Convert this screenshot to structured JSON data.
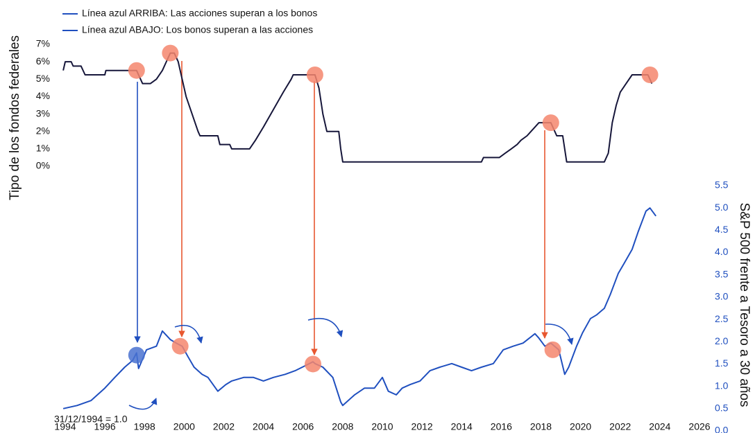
{
  "chart_data": {
    "type": "line",
    "legend": [
      "Línea azul ARRIBA: Las acciones superan a los bonos",
      "Línea azul ABAJO: Los bonos superan a las acciones"
    ],
    "y_label": "Tipo de los fondos federales",
    "y2_label": "S&P 500 frente a Tesoro a 30 años",
    "annotation": "31/12/1994 = 1.0",
    "xlim": [
      1994,
      2026
    ],
    "xticks": [
      1994,
      1996,
      1998,
      2000,
      2002,
      2004,
      2006,
      2008,
      2010,
      2012,
      2014,
      2016,
      2018,
      2020,
      2022,
      2024,
      2026
    ],
    "ylim": [
      0,
      7
    ],
    "yticks": [
      {
        "value": 0,
        "label": "0%"
      },
      {
        "value": 1,
        "label": "1%"
      },
      {
        "value": 2,
        "label": "2%"
      },
      {
        "value": 3,
        "label": "3%"
      },
      {
        "value": 4,
        "label": "4%"
      },
      {
        "value": 5,
        "label": "5%"
      },
      {
        "value": 6,
        "label": "6%"
      },
      {
        "value": 7,
        "label": "7%"
      }
    ],
    "y2lim": [
      0,
      5.5
    ],
    "y2ticks": [
      {
        "value": 0,
        "label": "0.0"
      },
      0.5,
      {
        "value": 1,
        "label": "1.0"
      },
      1.5,
      {
        "value": 2,
        "label": "2.0"
      },
      2.5,
      {
        "value": 3,
        "label": "3.0"
      },
      3.5,
      {
        "value": 4,
        "label": "4.0"
      },
      4.5,
      {
        "value": 5,
        "label": "5.0"
      },
      5.5
    ],
    "series": [
      {
        "color": "#16163a",
        "axis": "y",
        "x": [
          1993.9,
          1994.0,
          1994.3,
          1994.4,
          1994.8,
          1995.0,
          1996.0,
          1996.05,
          1997.6,
          1997.9,
          1998.3,
          1998.6,
          1998.9,
          1999.1,
          1999.3,
          1999.5,
          1999.7,
          1999.9,
          2000.1,
          2000.4,
          2000.7,
          2000.8,
          2001.7,
          2001.8,
          2002.3,
          2002.4,
          2003.3,
          2003.6,
          2004.0,
          2004.5,
          2005.0,
          2005.4,
          2005.5,
          2006.6,
          2006.8,
          2007.0,
          2007.2,
          2007.8,
          2007.9,
          2008.0,
          2015.0,
          2015.1,
          2015.9,
          2016.2,
          2016.5,
          2016.8,
          2017.0,
          2017.3,
          2017.5,
          2017.7,
          2017.9,
          2018.5,
          2018.8,
          2019.1,
          2019.3,
          2021.2,
          2021.4,
          2021.6,
          2021.8,
          2022.0,
          2022.3,
          2022.6,
          2023.4,
          2023.6
        ],
        "values": [
          5.5,
          6.0,
          6.0,
          5.75,
          5.75,
          5.25,
          5.25,
          5.5,
          5.5,
          4.75,
          4.75,
          5.0,
          5.5,
          6.0,
          6.5,
          6.5,
          6.0,
          5.0,
          4.0,
          3.0,
          2.0,
          1.75,
          1.75,
          1.25,
          1.25,
          1.0,
          1.0,
          1.5,
          2.25,
          3.25,
          4.25,
          5.0,
          5.25,
          5.25,
          4.5,
          3.0,
          2.0,
          2.0,
          1.0,
          0.25,
          0.25,
          0.5,
          0.5,
          0.75,
          1.0,
          1.25,
          1.5,
          1.75,
          2.0,
          2.25,
          2.5,
          2.5,
          1.75,
          1.75,
          0.25,
          0.25,
          0.75,
          2.5,
          3.5,
          4.25,
          4.75,
          5.25,
          5.25,
          4.75
        ]
      },
      {
        "color": "#1f4fbf",
        "axis": "y2",
        "x": [
          1993.9,
          1994.6,
          1995.3,
          1996.0,
          1996.5,
          1997.0,
          1997.4,
          1997.6,
          1997.7,
          1998.1,
          1998.6,
          1998.9,
          1999.3,
          1999.6,
          1999.9,
          2000.2,
          2000.5,
          2000.9,
          2001.2,
          2001.7,
          2002.1,
          2002.4,
          2003.0,
          2003.5,
          2004.0,
          2004.5,
          2005.1,
          2005.6,
          2006.1,
          2006.5,
          2006.6,
          2007.0,
          2007.5,
          2007.9,
          2008.0,
          2008.6,
          2009.1,
          2009.6,
          2010.0,
          2010.3,
          2010.7,
          2011.0,
          2011.4,
          2011.9,
          2012.4,
          2012.9,
          2013.5,
          2014.0,
          2014.5,
          2015.0,
          2015.6,
          2016.1,
          2016.6,
          2017.1,
          2017.7,
          2017.9,
          2018.2,
          2018.5,
          2018.9,
          2019.2,
          2019.4,
          2019.8,
          2020.1,
          2020.5,
          2020.8,
          2021.2,
          2021.5,
          2021.9,
          2022.2,
          2022.6,
          2022.9,
          2023.3,
          2023.5,
          2023.8
        ],
        "values": [
          0.5,
          0.57,
          0.68,
          0.96,
          1.2,
          1.43,
          1.58,
          1.75,
          1.4,
          1.82,
          1.9,
          2.24,
          2.05,
          1.97,
          1.9,
          1.66,
          1.43,
          1.27,
          1.2,
          0.89,
          1.04,
          1.12,
          1.2,
          1.2,
          1.12,
          1.2,
          1.27,
          1.35,
          1.46,
          1.55,
          1.51,
          1.43,
          1.2,
          0.65,
          0.57,
          0.81,
          0.96,
          0.96,
          1.2,
          0.89,
          0.81,
          0.96,
          1.04,
          1.12,
          1.35,
          1.43,
          1.51,
          1.43,
          1.35,
          1.43,
          1.51,
          1.82,
          1.9,
          1.97,
          2.18,
          2.08,
          1.9,
          1.97,
          1.82,
          1.27,
          1.43,
          1.9,
          2.2,
          2.52,
          2.6,
          2.75,
          3.06,
          3.53,
          3.76,
          4.07,
          4.46,
          4.93,
          5.0,
          4.82
        ]
      }
    ],
    "highlights": [
      {
        "x": 1997.6,
        "value": 5.5,
        "axis": "y",
        "color": "#f4866d"
      },
      {
        "x": 1999.3,
        "value": 6.5,
        "axis": "y",
        "color": "#f4866d"
      },
      {
        "x": 2006.6,
        "value": 5.25,
        "axis": "y",
        "color": "#f4866d"
      },
      {
        "x": 2018.5,
        "value": 2.5,
        "axis": "y",
        "color": "#f4866d"
      },
      {
        "x": 2023.5,
        "value": 5.25,
        "axis": "y",
        "color": "#f4866d"
      },
      {
        "x": 1997.6,
        "value": 1.7,
        "axis": "y2",
        "color": "#4a72d0"
      },
      {
        "x": 1999.8,
        "value": 1.9,
        "axis": "y2",
        "color": "#f4866d"
      },
      {
        "x": 2006.5,
        "value": 1.5,
        "axis": "y2",
        "color": "#f4866d"
      },
      {
        "x": 2018.6,
        "value": 1.82,
        "axis": "y2",
        "color": "#f4866d"
      }
    ]
  }
}
